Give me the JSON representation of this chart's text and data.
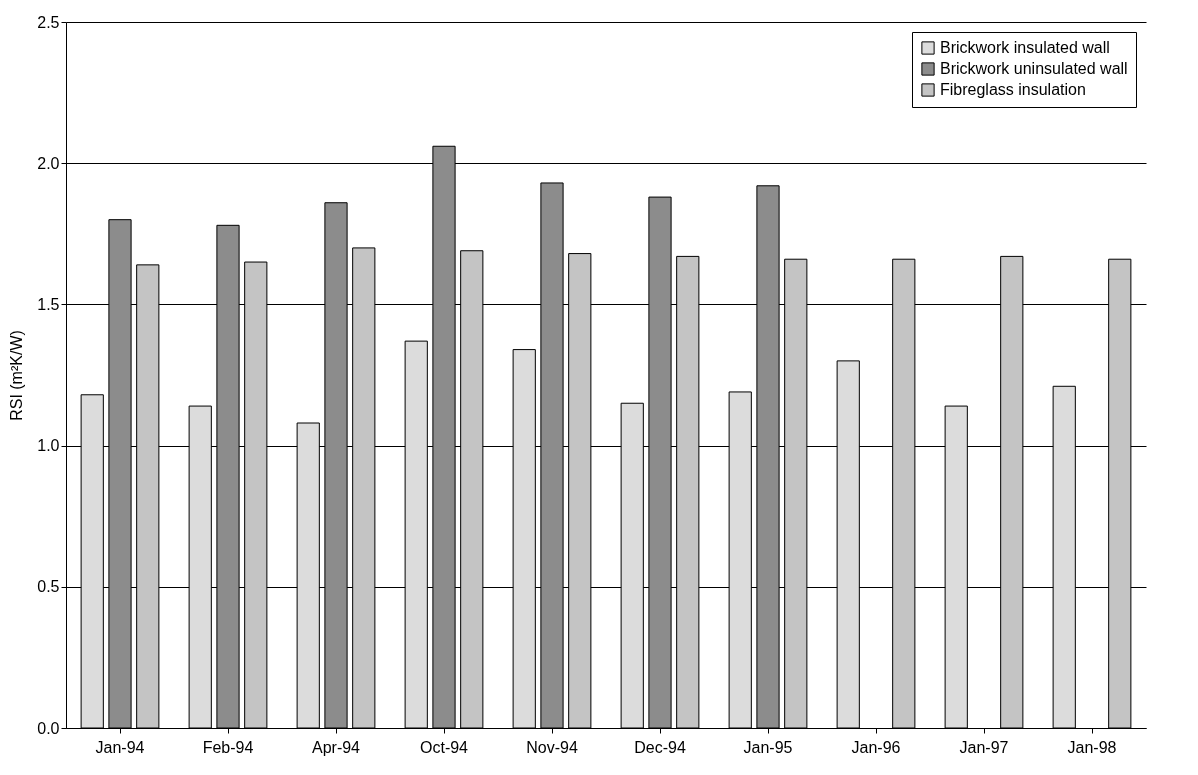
{
  "chart_data": {
    "type": "bar",
    "ylabel": "RSI  (m²K/W)",
    "categories": [
      "Jan-94",
      "Feb-94",
      "Apr-94",
      "Oct-94",
      "Nov-94",
      "Dec-94",
      "Jan-95",
      "Jan-96",
      "Jan-97",
      "Jan-98"
    ],
    "series": [
      {
        "name": "Brickwork insulated wall",
        "color": "#dcdcdc",
        "values": [
          1.18,
          1.14,
          1.08,
          1.37,
          1.34,
          1.15,
          1.19,
          1.3,
          1.14,
          1.21
        ]
      },
      {
        "name": "Brickwork uninsulated wall",
        "color": "#8c8c8c",
        "values": [
          1.8,
          1.78,
          1.86,
          2.06,
          1.93,
          1.88,
          1.92,
          null,
          null,
          null
        ]
      },
      {
        "name": "Fibreglass insulation",
        "color": "#c4c4c4",
        "values": [
          1.64,
          1.65,
          1.7,
          1.69,
          1.68,
          1.67,
          1.66,
          1.66,
          1.67,
          1.66
        ]
      }
    ],
    "ylim": [
      0,
      2.5
    ],
    "yticks": [
      {
        "value": 0,
        "label": "0.0"
      },
      {
        "value": 0.5,
        "label": "0.5"
      },
      {
        "value": 1,
        "label": "1.0"
      },
      {
        "value": 1.5,
        "label": "1.5"
      },
      {
        "value": 2,
        "label": "2.0"
      },
      {
        "value": 2.5,
        "label": "2.5"
      }
    ],
    "grid": "y",
    "legend": "top right"
  }
}
